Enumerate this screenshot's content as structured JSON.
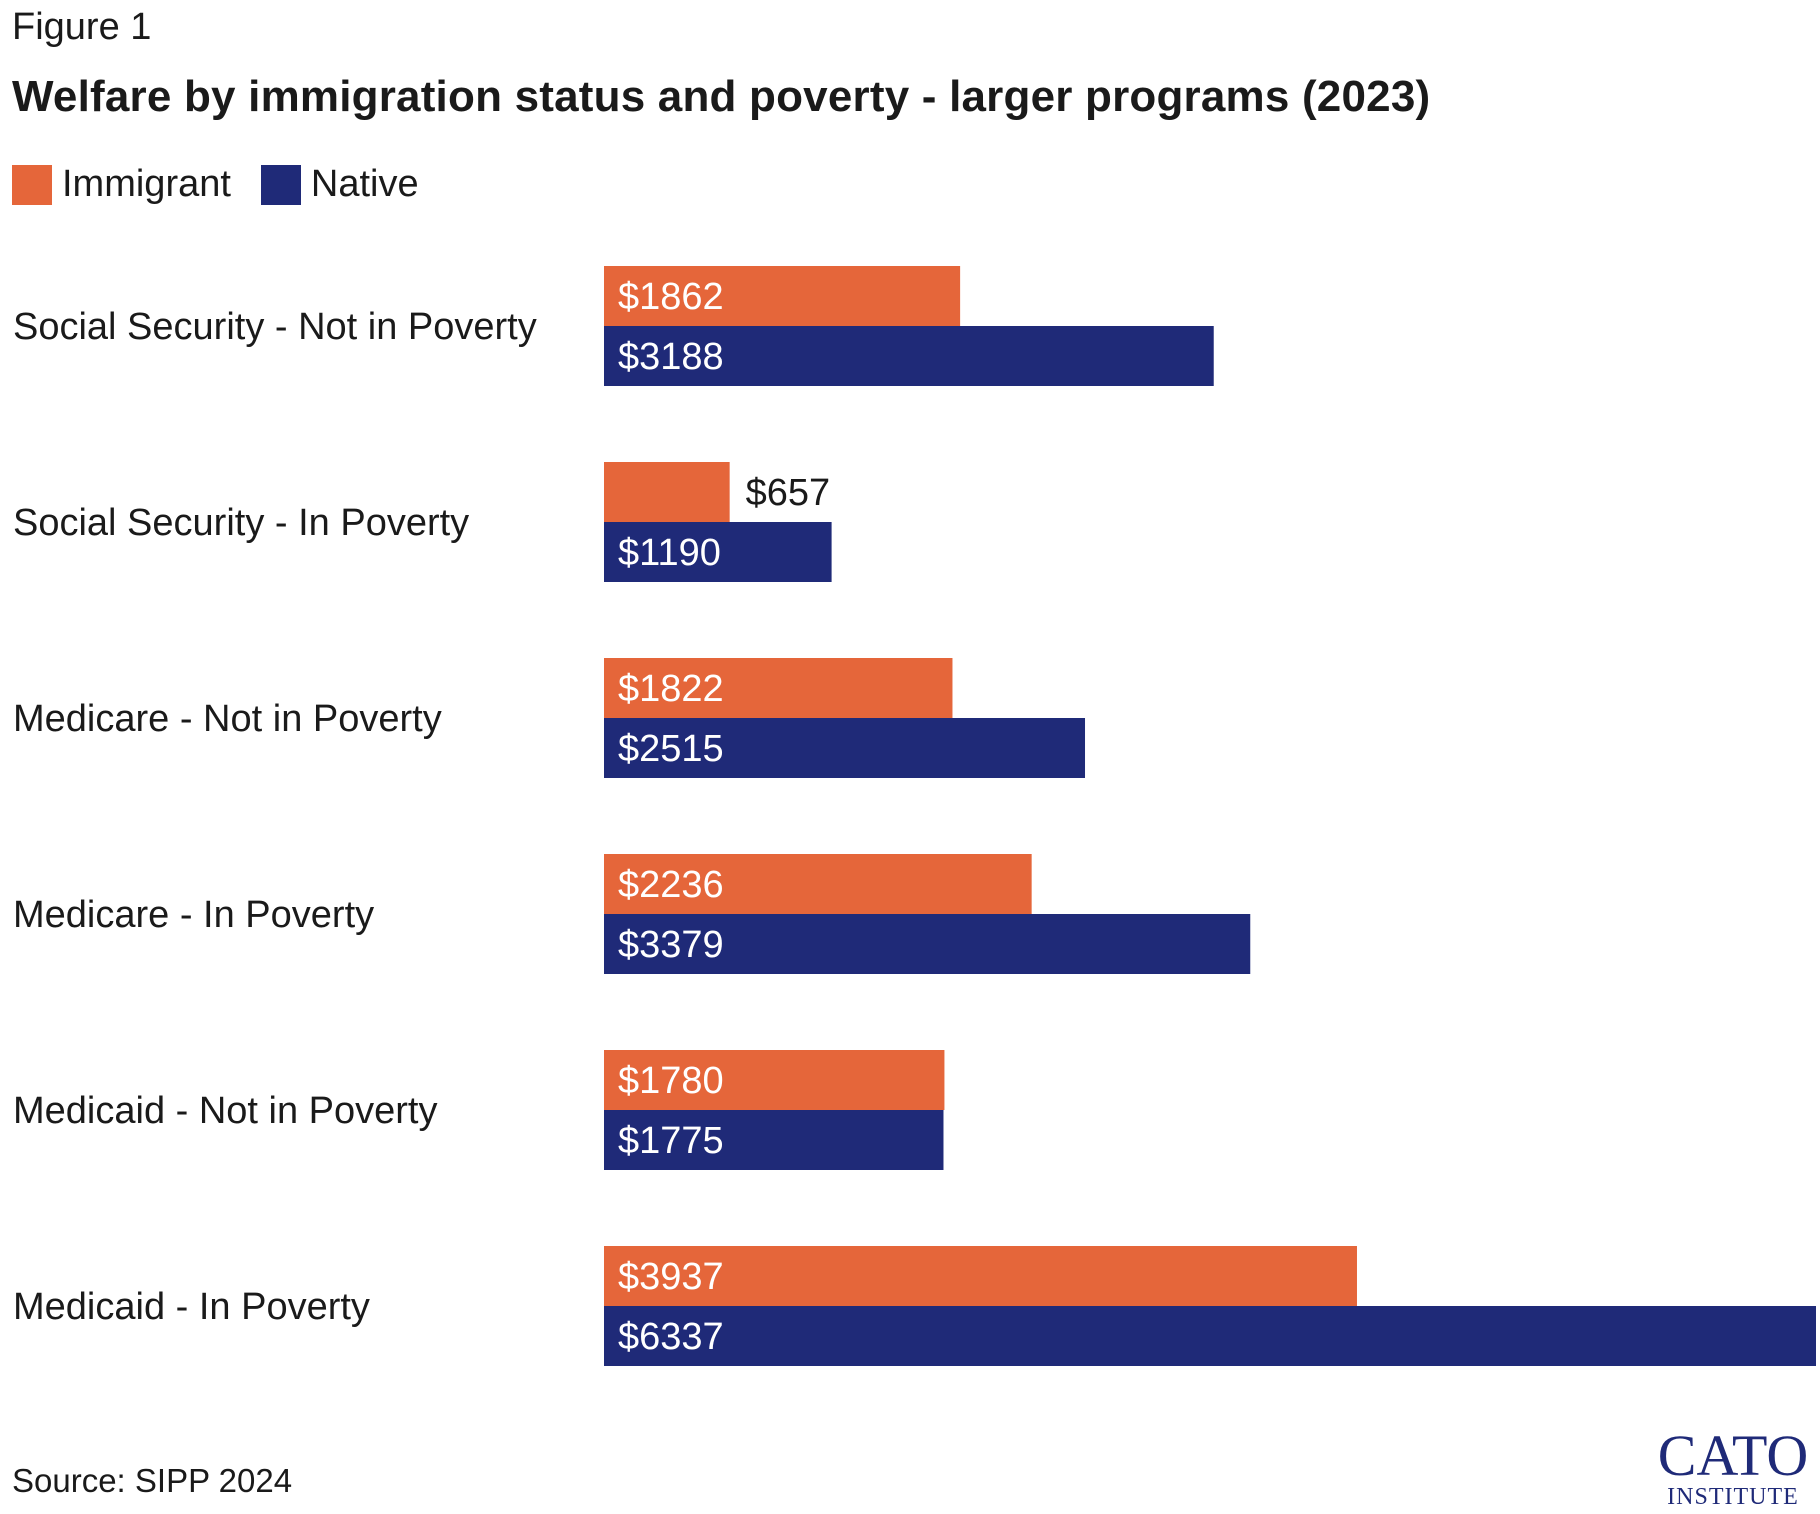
{
  "figure_label": "Figure 1",
  "source": "Source: SIPP 2024",
  "logo": {
    "name": "CATO",
    "subtitle": "INSTITUTE"
  },
  "colors": {
    "immigrant": "#E5663A",
    "native": "#1F2A78",
    "text": "#1a1a1a",
    "label_inside": "#ffffff"
  },
  "legend": [
    {
      "label": "Immigrant",
      "color": "#E5663A"
    },
    {
      "label": "Native",
      "color": "#1F2A78"
    }
  ],
  "chart_data": {
    "type": "bar",
    "orientation": "horizontal",
    "title": "Welfare by immigration status and poverty - larger programs (2023)",
    "xlabel": "",
    "ylabel": "",
    "grid": false,
    "legend_position": "top-left",
    "xlim": [
      0,
      6337
    ],
    "categories": [
      "Social Security - Not in Poverty",
      "Social Security - In Poverty",
      "Medicare - Not in Poverty",
      "Medicare - In Poverty",
      "Medicaid - Not in Poverty",
      "Medicaid - In Poverty"
    ],
    "series": [
      {
        "name": "Immigrant",
        "values": [
          1862,
          657,
          1822,
          2236,
          1780,
          3937
        ],
        "labels": [
          "$1862",
          "$657",
          "$1822",
          "$2236",
          "$1780",
          "$3937"
        ]
      },
      {
        "name": "Native",
        "values": [
          3188,
          1190,
          2515,
          3379,
          1775,
          6337
        ],
        "labels": [
          "$3188",
          "$1190",
          "$2515",
          "$3379",
          "$1775",
          "$6337"
        ]
      }
    ]
  }
}
